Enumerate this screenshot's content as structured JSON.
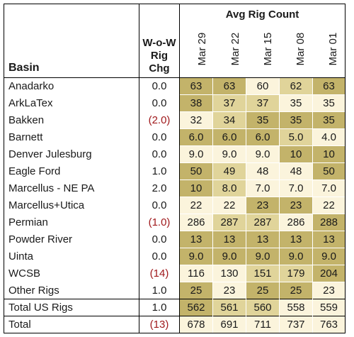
{
  "header": {
    "basin_label": "Basin",
    "wow_line1": "W-o-W",
    "wow_line2": "Rig Chg",
    "avg_title": "Avg Rig Count",
    "dates": [
      "Mar 29",
      "Mar 22",
      "Mar 15",
      "Mar 08",
      "Mar 01"
    ]
  },
  "rows": [
    {
      "basin": "Anadarko",
      "wow": "0.0",
      "vals": [
        "63",
        "63",
        "60",
        "62",
        "63"
      ]
    },
    {
      "basin": "ArkLaTex",
      "wow": "0.0",
      "vals": [
        "38",
        "37",
        "37",
        "35",
        "35"
      ]
    },
    {
      "basin": "Bakken",
      "wow": "(2.0)",
      "vals": [
        "32",
        "34",
        "35",
        "35",
        "35"
      ]
    },
    {
      "basin": "Barnett",
      "wow": "0.0",
      "vals": [
        "6.0",
        "6.0",
        "6.0",
        "5.0",
        "4.0"
      ]
    },
    {
      "basin": "Denver Julesburg",
      "wow": "0.0",
      "vals": [
        "9.0",
        "9.0",
        "9.0",
        "10",
        "10"
      ]
    },
    {
      "basin": "Eagle Ford",
      "wow": "1.0",
      "vals": [
        "50",
        "49",
        "48",
        "48",
        "50"
      ]
    },
    {
      "basin": "Marcellus - NE PA",
      "wow": "2.0",
      "vals": [
        "10",
        "8.0",
        "7.0",
        "7.0",
        "7.0"
      ]
    },
    {
      "basin": "Marcellus+Utica",
      "wow": "0.0",
      "vals": [
        "22",
        "22",
        "23",
        "23",
        "22"
      ]
    },
    {
      "basin": "Permian",
      "wow": "(1.0)",
      "vals": [
        "286",
        "287",
        "287",
        "286",
        "288"
      ]
    },
    {
      "basin": "Powder River",
      "wow": "0.0",
      "vals": [
        "13",
        "13",
        "13",
        "13",
        "13"
      ]
    },
    {
      "basin": "Uinta",
      "wow": "0.0",
      "vals": [
        "9.0",
        "9.0",
        "9.0",
        "9.0",
        "9.0"
      ]
    },
    {
      "basin": "WCSB",
      "wow": "(14)",
      "vals": [
        "116",
        "130",
        "151",
        "179",
        "204"
      ]
    },
    {
      "basin": "Other Rigs",
      "wow": "1.0",
      "vals": [
        "25",
        "23",
        "25",
        "25",
        "23"
      ]
    }
  ],
  "total_us": {
    "basin": "Total US Rigs",
    "wow": "1.0",
    "vals": [
      "562",
      "561",
      "560",
      "558",
      "559"
    ]
  },
  "total": {
    "basin": "Total",
    "wow": "(13)",
    "vals": [
      "678",
      "691",
      "711",
      "737",
      "763"
    ]
  },
  "heat_colors": {
    "light": "#fbf4dc",
    "mid": "#e0d49a",
    "dark": "#c3b36a"
  },
  "cell_shades": [
    [
      "dark",
      "dark",
      "light",
      "mid",
      "dark"
    ],
    [
      "dark",
      "mid",
      "mid",
      "light",
      "light"
    ],
    [
      "light",
      "mid",
      "dark",
      "dark",
      "dark"
    ],
    [
      "dark",
      "dark",
      "dark",
      "mid",
      "light"
    ],
    [
      "light",
      "light",
      "light",
      "dark",
      "dark"
    ],
    [
      "dark",
      "mid",
      "light",
      "light",
      "dark"
    ],
    [
      "dark",
      "mid",
      "light",
      "light",
      "light"
    ],
    [
      "light",
      "light",
      "dark",
      "dark",
      "light"
    ],
    [
      "light",
      "mid",
      "mid",
      "light",
      "dark"
    ],
    [
      "dark",
      "dark",
      "dark",
      "dark",
      "dark"
    ],
    [
      "dark",
      "dark",
      "dark",
      "dark",
      "dark"
    ],
    [
      "light",
      "light",
      "mid",
      "mid",
      "dark"
    ],
    [
      "dark",
      "light",
      "dark",
      "dark",
      "light"
    ]
  ],
  "total_us_shades": [
    "dark",
    "mid",
    "mid",
    "light",
    "light"
  ],
  "total_shades": [
    "light",
    "light",
    "light",
    "light",
    "light"
  ]
}
